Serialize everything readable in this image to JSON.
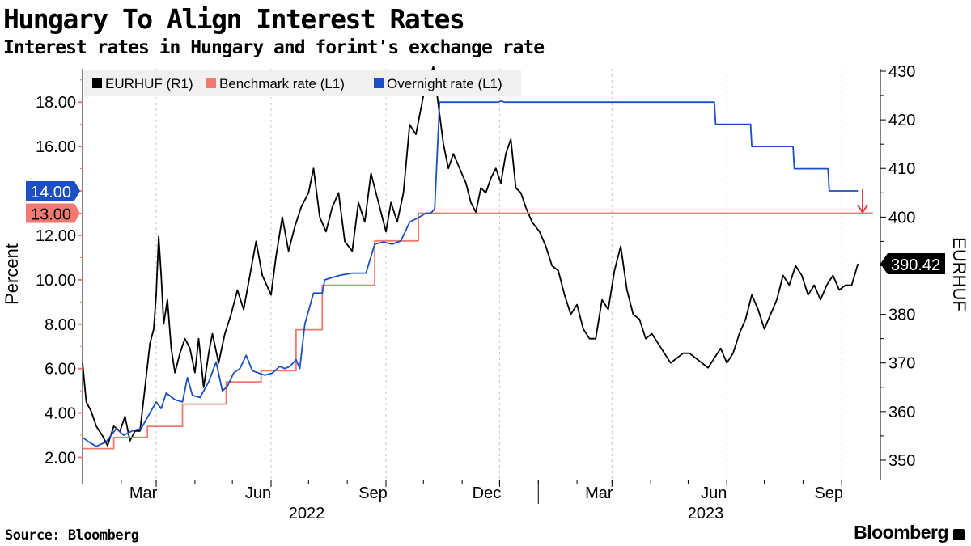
{
  "title": "Hungary To Align Interest Rates",
  "subtitle": "Interest rates in Hungary and forint's exchange rate",
  "source": "Source: Bloomberg",
  "brand": "Bloomberg",
  "chart_data": {
    "type": "line",
    "left_axis": {
      "label": "Percent",
      "min": 1.0,
      "max": 19.5,
      "ticks": [
        "2.00",
        "4.00",
        "6.00",
        "8.00",
        "10.00",
        "12.00",
        "14.00",
        "16.00",
        "18.00"
      ],
      "tick_values": [
        2,
        4,
        6,
        8,
        10,
        12,
        14,
        16,
        18
      ]
    },
    "right_axis": {
      "label": "EURHUF",
      "min": 346,
      "max": 430.5,
      "ticks": [
        "350",
        "360",
        "370",
        "380",
        "390",
        "400",
        "410",
        "420",
        "430"
      ],
      "tick_values": [
        350,
        360,
        370,
        380,
        390,
        400,
        410,
        420,
        430
      ]
    },
    "x_axis": {
      "min": "2022-01-01",
      "max": "2023-09-30",
      "month_labels": [
        {
          "label": "Mar",
          "date": "2022-03-01"
        },
        {
          "label": "Jun",
          "date": "2022-06-01"
        },
        {
          "label": "Sep",
          "date": "2022-09-01"
        },
        {
          "label": "Dec",
          "date": "2022-12-01"
        },
        {
          "label": "Mar",
          "date": "2023-03-01"
        },
        {
          "label": "Jun",
          "date": "2023-06-01"
        },
        {
          "label": "Sep",
          "date": "2023-09-01"
        }
      ],
      "year_labels": [
        {
          "label": "2022",
          "date": "2022-07-15"
        },
        {
          "label": "2023",
          "date": "2023-07-15"
        }
      ]
    },
    "legend": {
      "placement": "top-left"
    },
    "series": [
      {
        "name": "EURHUF (R1)",
        "axis": "right",
        "color": "#000000",
        "points": [
          [
            "2022-01-01",
            370
          ],
          [
            "2022-01-04",
            362
          ],
          [
            "2022-01-08",
            360
          ],
          [
            "2022-01-12",
            357
          ],
          [
            "2022-01-17",
            355
          ],
          [
            "2022-01-21",
            353
          ],
          [
            "2022-01-26",
            357
          ],
          [
            "2022-01-31",
            356
          ],
          [
            "2022-02-04",
            359
          ],
          [
            "2022-02-08",
            354
          ],
          [
            "2022-02-12",
            356
          ],
          [
            "2022-02-16",
            356
          ],
          [
            "2022-02-20",
            365
          ],
          [
            "2022-02-24",
            374
          ],
          [
            "2022-02-27",
            377
          ],
          [
            "2022-03-01",
            384
          ],
          [
            "2022-03-03",
            396
          ],
          [
            "2022-03-05",
            388
          ],
          [
            "2022-03-07",
            378
          ],
          [
            "2022-03-10",
            383
          ],
          [
            "2022-03-13",
            373
          ],
          [
            "2022-03-16",
            368
          ],
          [
            "2022-03-20",
            372
          ],
          [
            "2022-03-24",
            375
          ],
          [
            "2022-03-28",
            373
          ],
          [
            "2022-04-01",
            368
          ],
          [
            "2022-04-04",
            375
          ],
          [
            "2022-04-08",
            365
          ],
          [
            "2022-04-12",
            372
          ],
          [
            "2022-04-15",
            376
          ],
          [
            "2022-04-20",
            370
          ],
          [
            "2022-04-25",
            376
          ],
          [
            "2022-04-30",
            380
          ],
          [
            "2022-05-05",
            385
          ],
          [
            "2022-05-10",
            381
          ],
          [
            "2022-05-15",
            388
          ],
          [
            "2022-05-20",
            395
          ],
          [
            "2022-05-25",
            388
          ],
          [
            "2022-06-01",
            384
          ],
          [
            "2022-06-05",
            392
          ],
          [
            "2022-06-10",
            400
          ],
          [
            "2022-06-15",
            393
          ],
          [
            "2022-06-20",
            398
          ],
          [
            "2022-06-25",
            402
          ],
          [
            "2022-07-01",
            405
          ],
          [
            "2022-07-05",
            410
          ],
          [
            "2022-07-10",
            400
          ],
          [
            "2022-07-15",
            397
          ],
          [
            "2022-07-20",
            402
          ],
          [
            "2022-07-25",
            405
          ],
          [
            "2022-07-30",
            395
          ],
          [
            "2022-08-05",
            393
          ],
          [
            "2022-08-10",
            403
          ],
          [
            "2022-08-15",
            399
          ],
          [
            "2022-08-20",
            409
          ],
          [
            "2022-08-25",
            404
          ],
          [
            "2022-09-01",
            397
          ],
          [
            "2022-09-05",
            403
          ],
          [
            "2022-09-10",
            399
          ],
          [
            "2022-09-15",
            405
          ],
          [
            "2022-09-20",
            419
          ],
          [
            "2022-09-25",
            417
          ],
          [
            "2022-10-01",
            425
          ],
          [
            "2022-10-05",
            428
          ],
          [
            "2022-10-09",
            431
          ],
          [
            "2022-10-13",
            423
          ],
          [
            "2022-10-17",
            415
          ],
          [
            "2022-10-21",
            410
          ],
          [
            "2022-10-25",
            413
          ],
          [
            "2022-10-30",
            410
          ],
          [
            "2022-11-04",
            407
          ],
          [
            "2022-11-08",
            403
          ],
          [
            "2022-11-12",
            401
          ],
          [
            "2022-11-16",
            406
          ],
          [
            "2022-11-20",
            405
          ],
          [
            "2022-11-24",
            408
          ],
          [
            "2022-11-28",
            410
          ],
          [
            "2022-12-02",
            407
          ],
          [
            "2022-12-06",
            413
          ],
          [
            "2022-12-10",
            416
          ],
          [
            "2022-12-14",
            406
          ],
          [
            "2022-12-18",
            405
          ],
          [
            "2022-12-22",
            402
          ],
          [
            "2022-12-27",
            399
          ],
          [
            "2023-01-02",
            397
          ],
          [
            "2023-01-07",
            394
          ],
          [
            "2023-01-12",
            390
          ],
          [
            "2023-01-17",
            389
          ],
          [
            "2023-01-22",
            384
          ],
          [
            "2023-01-27",
            380
          ],
          [
            "2023-02-01",
            382
          ],
          [
            "2023-02-06",
            377
          ],
          [
            "2023-02-11",
            375
          ],
          [
            "2023-02-16",
            375
          ],
          [
            "2023-02-21",
            383
          ],
          [
            "2023-02-26",
            381
          ],
          [
            "2023-03-03",
            389
          ],
          [
            "2023-03-08",
            394
          ],
          [
            "2023-03-13",
            385
          ],
          [
            "2023-03-18",
            380
          ],
          [
            "2023-03-23",
            379
          ],
          [
            "2023-03-28",
            375
          ],
          [
            "2023-04-02",
            376
          ],
          [
            "2023-04-07",
            374
          ],
          [
            "2023-04-12",
            372
          ],
          [
            "2023-04-17",
            370
          ],
          [
            "2023-04-22",
            371
          ],
          [
            "2023-04-27",
            372
          ],
          [
            "2023-05-02",
            372
          ],
          [
            "2023-05-07",
            371
          ],
          [
            "2023-05-12",
            370
          ],
          [
            "2023-05-17",
            369
          ],
          [
            "2023-05-22",
            371
          ],
          [
            "2023-05-27",
            373
          ],
          [
            "2023-06-01",
            370
          ],
          [
            "2023-06-06",
            372
          ],
          [
            "2023-06-11",
            376
          ],
          [
            "2023-06-16",
            379
          ],
          [
            "2023-06-21",
            384
          ],
          [
            "2023-06-26",
            381
          ],
          [
            "2023-07-01",
            377
          ],
          [
            "2023-07-06",
            380
          ],
          [
            "2023-07-11",
            383
          ],
          [
            "2023-07-16",
            388
          ],
          [
            "2023-07-21",
            386
          ],
          [
            "2023-07-26",
            390
          ],
          [
            "2023-07-31",
            388
          ],
          [
            "2023-08-05",
            384
          ],
          [
            "2023-08-10",
            386
          ],
          [
            "2023-08-15",
            383
          ],
          [
            "2023-08-20",
            386
          ],
          [
            "2023-08-25",
            388
          ],
          [
            "2023-08-30",
            385
          ],
          [
            "2023-09-04",
            386
          ],
          [
            "2023-09-09",
            386
          ],
          [
            "2023-09-14",
            390.42
          ]
        ]
      },
      {
        "name": "Benchmark rate (L1)",
        "axis": "left",
        "color": "#f07a72",
        "steps": [
          [
            "2022-01-01",
            2.4
          ],
          [
            "2022-01-26",
            2.9
          ],
          [
            "2022-02-22",
            3.4
          ],
          [
            "2022-03-22",
            4.4
          ],
          [
            "2022-04-26",
            5.4
          ],
          [
            "2022-05-24",
            5.9
          ],
          [
            "2022-06-21",
            7.75
          ],
          [
            "2022-07-12",
            9.75
          ],
          [
            "2022-08-23",
            11.75
          ],
          [
            "2022-09-27",
            13.0
          ],
          [
            "2023-09-26",
            13.0
          ]
        ],
        "end_label": "13.00"
      },
      {
        "name": "Overnight rate (L1)",
        "axis": "left",
        "color": "#1c4fc2",
        "points": [
          [
            "2022-01-01",
            2.9
          ],
          [
            "2022-01-06",
            2.7
          ],
          [
            "2022-01-12",
            2.5
          ],
          [
            "2022-01-20",
            2.7
          ],
          [
            "2022-01-28",
            3.3
          ],
          [
            "2022-02-03",
            3.0
          ],
          [
            "2022-02-10",
            3.2
          ],
          [
            "2022-02-17",
            3.3
          ],
          [
            "2022-02-24",
            4.0
          ],
          [
            "2022-03-01",
            4.5
          ],
          [
            "2022-03-05",
            4.2
          ],
          [
            "2022-03-09",
            4.9
          ],
          [
            "2022-03-16",
            4.6
          ],
          [
            "2022-03-22",
            4.5
          ],
          [
            "2022-03-26",
            5.6
          ],
          [
            "2022-03-30",
            4.8
          ],
          [
            "2022-04-05",
            4.7
          ],
          [
            "2022-04-12",
            5.4
          ],
          [
            "2022-04-18",
            6.3
          ],
          [
            "2022-04-23",
            5.0
          ],
          [
            "2022-04-27",
            5.2
          ],
          [
            "2022-05-02",
            5.8
          ],
          [
            "2022-05-07",
            6.0
          ],
          [
            "2022-05-12",
            6.6
          ],
          [
            "2022-05-17",
            5.9
          ],
          [
            "2022-05-22",
            5.8
          ],
          [
            "2022-05-27",
            5.7
          ],
          [
            "2022-06-02",
            5.8
          ],
          [
            "2022-06-08",
            6.1
          ],
          [
            "2022-06-12",
            6.0
          ],
          [
            "2022-06-16",
            6.1
          ],
          [
            "2022-06-21",
            6.4
          ],
          [
            "2022-06-24",
            6.0
          ],
          [
            "2022-06-28",
            8.0
          ],
          [
            "2022-07-05",
            9.4
          ],
          [
            "2022-07-12",
            9.4
          ],
          [
            "2022-07-14",
            10.0
          ],
          [
            "2022-07-26",
            10.2
          ],
          [
            "2022-08-05",
            10.3
          ],
          [
            "2022-08-16",
            10.3
          ],
          [
            "2022-08-23",
            11.6
          ],
          [
            "2022-08-30",
            11.7
          ],
          [
            "2022-09-06",
            11.6
          ],
          [
            "2022-09-13",
            11.75
          ],
          [
            "2022-09-20",
            12.6
          ],
          [
            "2022-09-27",
            12.8
          ],
          [
            "2022-10-03",
            13.0
          ],
          [
            "2022-10-07",
            13.0
          ],
          [
            "2022-10-10",
            13.2
          ],
          [
            "2022-10-14",
            18.0
          ],
          [
            "2022-10-20",
            18.0
          ],
          [
            "2022-11-30",
            18.0
          ],
          [
            "2022-12-02",
            18.05
          ],
          [
            "2022-12-05",
            18.0
          ],
          [
            "2023-05-22",
            18.0
          ],
          [
            "2023-05-23",
            17.0
          ],
          [
            "2023-06-20",
            17.0
          ],
          [
            "2023-06-21",
            16.0
          ],
          [
            "2023-07-24",
            16.0
          ],
          [
            "2023-07-25",
            15.0
          ],
          [
            "2023-08-21",
            15.0
          ],
          [
            "2023-08-22",
            14.0
          ],
          [
            "2023-09-14",
            14.0
          ]
        ],
        "end_label": "14.00"
      }
    ],
    "end_labels": {
      "eurhuf": "390.42"
    }
  }
}
